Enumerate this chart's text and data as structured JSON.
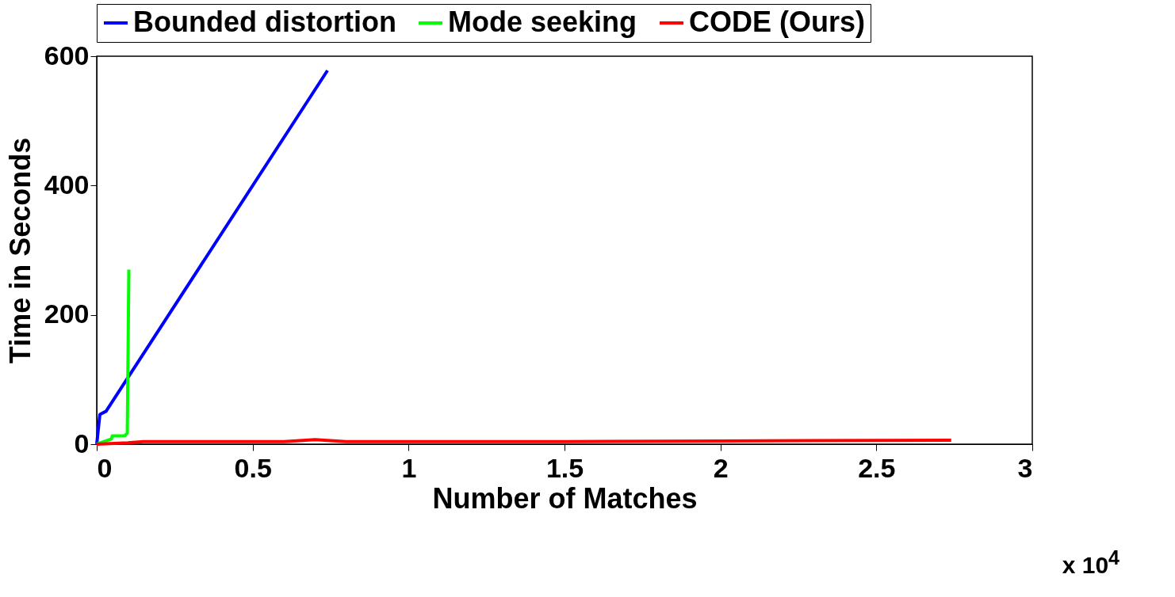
{
  "chart_data": {
    "type": "line",
    "xlabel": "Number of Matches",
    "ylabel": "Time in Seconds",
    "annotations": [
      "x 10$^{4}$"
    ],
    "xlim": [
      0,
      3
    ],
    "xticks": [
      0,
      0.5,
      1,
      1.5,
      2,
      2.5,
      3
    ],
    "ylim": [
      0,
      600
    ],
    "yticks": [
      0,
      200,
      400,
      600
    ],
    "legend": "top",
    "grid": false,
    "line_style": "solid",
    "series": [
      {
        "name": "Bounded distortion",
        "color": "#0000ff",
        "x": [
          0,
          0.01,
          0.03,
          0.74
        ],
        "values": [
          0,
          46,
          51,
          578
        ]
      },
      {
        "name": "Mode seeking",
        "color": "#00ff00",
        "x": [
          0,
          0.047,
          0.05,
          0.09,
          0.098,
          0.103
        ],
        "values": [
          0,
          8,
          13,
          13,
          17,
          270
        ]
      },
      {
        "name": "CODE (Ours)",
        "color": "#ff0000",
        "x": [
          0,
          0.1,
          0.15,
          0.6,
          0.7,
          0.8,
          1.5,
          2.0,
          2.74
        ],
        "values": [
          0,
          2,
          4,
          4,
          7,
          4,
          4,
          5,
          6
        ]
      }
    ]
  }
}
